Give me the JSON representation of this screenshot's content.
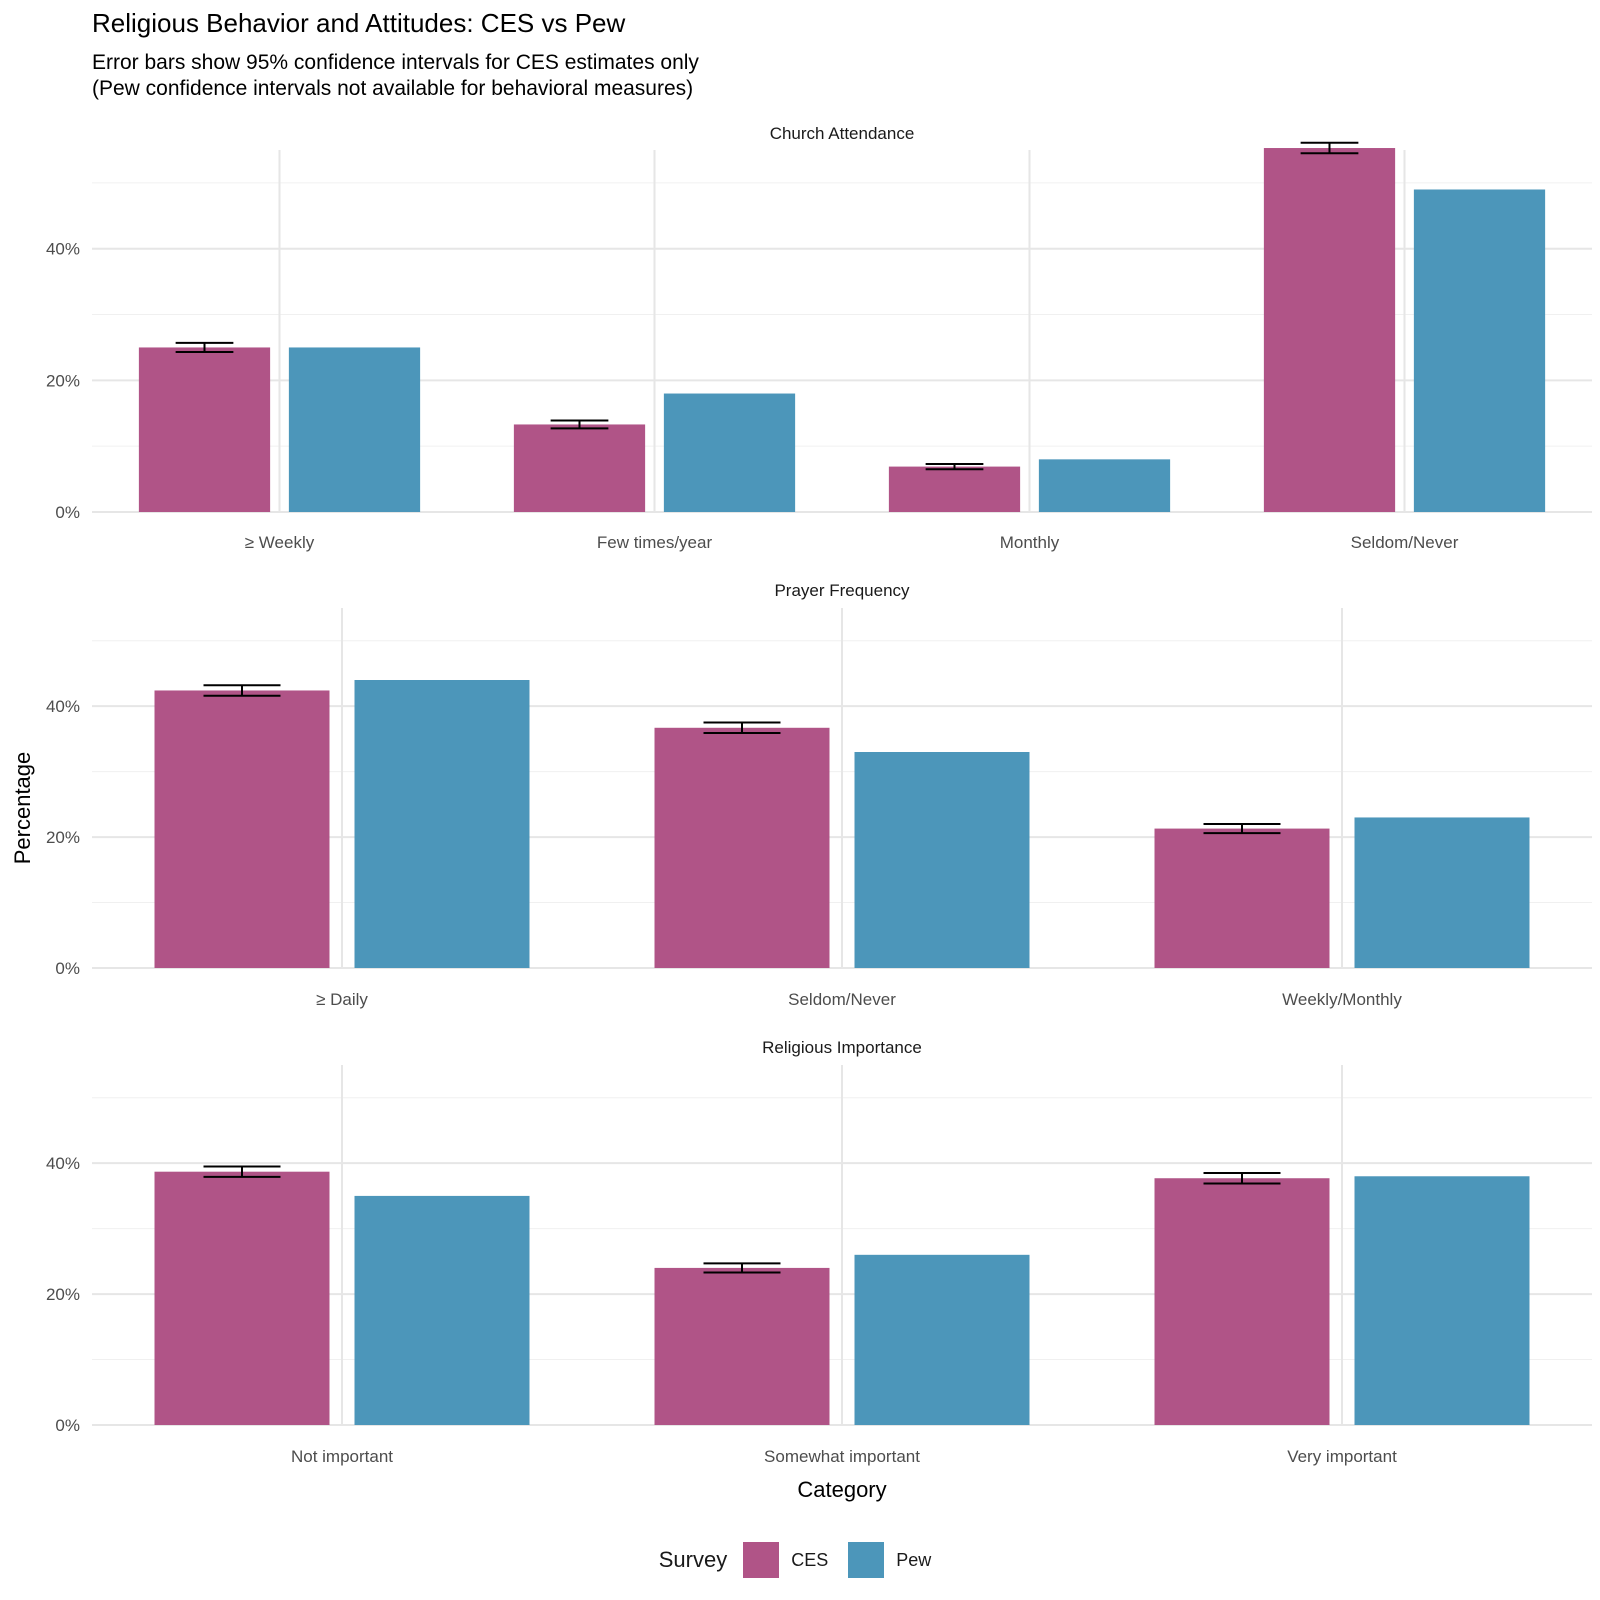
{
  "title": "Religious Behavior and Attitudes: CES vs Pew",
  "subtitle_lines": [
    "Error bars show 95% confidence intervals for CES estimates only",
    "(Pew confidence intervals not available for behavioral measures)"
  ],
  "legend": {
    "title": "Survey",
    "items": [
      {
        "label": "CES",
        "color": "#B05487"
      },
      {
        "label": "Pew",
        "color": "#4C96BA"
      }
    ]
  },
  "chart_data": {
    "type": "bar",
    "xlabel": "Category",
    "ylabel": "Percentage",
    "ylim": [
      0,
      55
    ],
    "y_ticks": [
      0,
      20,
      40
    ],
    "y_tick_labels": [
      "0%",
      "20%",
      "40%"
    ],
    "grid": true,
    "legend_position": "bottom",
    "panels": [
      {
        "title": "Church Attendance",
        "categories": [
          "≥ Weekly",
          "Few times/year",
          "Monthly",
          "Seldom/Never"
        ],
        "series": [
          {
            "name": "CES",
            "values": [
              25,
              13.3,
              6.9,
              55.3
            ],
            "ci_low": [
              24.3,
              12.7,
              6.5,
              54.5
            ],
            "ci_high": [
              25.7,
              13.9,
              7.3,
              56.1
            ]
          },
          {
            "name": "Pew",
            "values": [
              25,
              18,
              8,
              49
            ]
          }
        ]
      },
      {
        "title": "Prayer Frequency",
        "categories": [
          "≥ Daily",
          "Seldom/Never",
          "Weekly/Monthly"
        ],
        "series": [
          {
            "name": "CES",
            "values": [
              42.4,
              36.7,
              21.3
            ],
            "ci_low": [
              41.6,
              35.9,
              20.6
            ],
            "ci_high": [
              43.2,
              37.5,
              22.0
            ]
          },
          {
            "name": "Pew",
            "values": [
              44,
              33,
              23
            ]
          }
        ]
      },
      {
        "title": "Religious Importance",
        "categories": [
          "Not important",
          "Somewhat important",
          "Very important"
        ],
        "series": [
          {
            "name": "CES",
            "values": [
              38.7,
              24,
              37.7
            ],
            "ci_low": [
              37.9,
              23.3,
              36.9
            ],
            "ci_high": [
              39.5,
              24.7,
              38.5
            ]
          },
          {
            "name": "Pew",
            "values": [
              35,
              26,
              38
            ]
          }
        ]
      }
    ]
  }
}
